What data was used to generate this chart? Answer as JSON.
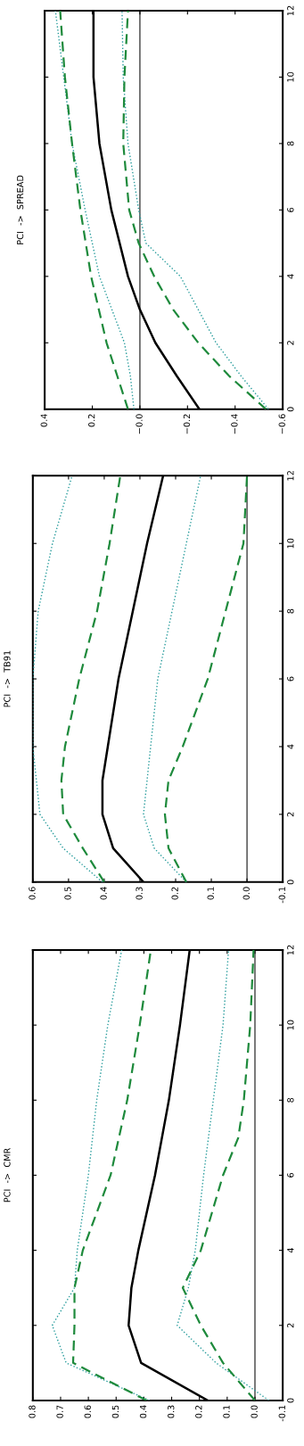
{
  "chart_data": [
    {
      "type": "line",
      "title": "PCI  ->  CMR",
      "ylim": [
        0,
        12
      ],
      "yticks": [
        0,
        2,
        4,
        6,
        8,
        10,
        12
      ],
      "xlim": [
        0.8,
        -0.1
      ],
      "xticks": [
        -0.1,
        {
          "value": 0,
          "label": "0.0"
        },
        0.1,
        0.2,
        0.3,
        0.4,
        0.5,
        0.6,
        0.7,
        0.8
      ],
      "grid": false,
      "legend": false,
      "ref_lines": [
        {
          "axis": "x",
          "value": 0,
          "color": "#404040",
          "line_style": "solid"
        }
      ],
      "series": [
        {
          "color": "#000000",
          "line_style": "solid",
          "values": [
            0,
            1,
            2,
            3,
            4,
            6,
            8,
            10,
            12
          ],
          "x": [
            0.17,
            0.41,
            0.455,
            0.445,
            0.42,
            0.36,
            0.31,
            0.27,
            0.235
          ]
        },
        {
          "color": "#2a9d9d",
          "line_style": "dotted",
          "values": [
            0,
            1,
            2,
            3,
            4,
            6,
            8,
            10,
            12
          ],
          "x": [
            0.38,
            0.68,
            0.73,
            0.65,
            0.64,
            0.6,
            0.57,
            0.53,
            0.48
          ]
        },
        {
          "color": "#1e8a3c",
          "line_style": "dashed",
          "values": [
            0,
            1,
            2,
            3,
            4,
            6,
            8,
            10,
            12
          ],
          "x": [
            0.39,
            0.655,
            0.65,
            0.65,
            0.62,
            0.52,
            0.46,
            0.415,
            0.375
          ]
        },
        {
          "color": "#2a9d9d",
          "line_style": "dotted",
          "values": [
            0,
            1,
            2,
            3,
            4,
            6,
            8,
            10,
            12
          ],
          "x": [
            -0.05,
            0.14,
            0.28,
            0.24,
            0.215,
            0.185,
            0.15,
            0.115,
            0.095
          ]
        },
        {
          "color": "#1e8a3c",
          "line_style": "dashed",
          "values": [
            0,
            1,
            2,
            3,
            4,
            6,
            7,
            8,
            10,
            12
          ],
          "x": [
            0.0,
            0.115,
            0.195,
            0.26,
            0.195,
            0.115,
            0.06,
            0.04,
            0.017,
            0.005
          ]
        }
      ]
    },
    {
      "type": "line",
      "title": "PCI  ->  TB91",
      "ylim": [
        0,
        12
      ],
      "yticks": [
        0,
        2,
        4,
        6,
        8,
        10,
        12
      ],
      "xlim": [
        0.6,
        -0.1
      ],
      "xticks": [
        -0.1,
        {
          "value": 0,
          "label": "0.0"
        },
        0.1,
        0.2,
        0.3,
        0.4,
        0.5,
        0.6
      ],
      "grid": false,
      "legend": false,
      "ref_lines": [
        {
          "axis": "x",
          "value": 0,
          "color": "#404040",
          "line_style": "solid"
        }
      ],
      "series": [
        {
          "color": "#000000",
          "line_style": "solid",
          "values": [
            0,
            1,
            2,
            3,
            4,
            6,
            8,
            10,
            12
          ],
          "x": [
            0.29,
            0.375,
            0.405,
            0.405,
            0.39,
            0.36,
            0.32,
            0.28,
            0.235
          ]
        },
        {
          "color": "#2a9d9d",
          "line_style": "dotted",
          "values": [
            0,
            1,
            2,
            4,
            6,
            8,
            10,
            12
          ],
          "x": [
            0.405,
            0.515,
            0.58,
            0.6,
            0.6,
            0.585,
            0.545,
            0.49
          ]
        },
        {
          "color": "#1e8a3c",
          "line_style": "dashed",
          "values": [
            0,
            1,
            2,
            3,
            4,
            6,
            8,
            10,
            12
          ],
          "x": [
            0.4,
            0.46,
            0.515,
            0.52,
            0.51,
            0.47,
            0.42,
            0.385,
            0.355
          ]
        },
        {
          "color": "#2a9d9d",
          "line_style": "dotted",
          "values": [
            0,
            1,
            2,
            4,
            6,
            8,
            10,
            12
          ],
          "x": [
            0.17,
            0.26,
            0.29,
            0.27,
            0.25,
            0.21,
            0.17,
            0.13
          ]
        },
        {
          "color": "#1e8a3c",
          "line_style": "dashed",
          "values": [
            0,
            1,
            2,
            3,
            4,
            6,
            8,
            10,
            12
          ],
          "x": [
            0.17,
            0.22,
            0.23,
            0.22,
            0.18,
            0.11,
            0.06,
            0.01,
            0.0
          ]
        }
      ]
    },
    {
      "type": "line",
      "title": "PCI  ->  SPREAD",
      "ylim": [
        0,
        12
      ],
      "yticks": [
        0,
        2,
        4,
        6,
        8,
        10,
        12
      ],
      "xlim": [
        0.4,
        -0.6
      ],
      "xticks": [
        {
          "value": -0.6,
          "label": "−0.6"
        },
        {
          "value": -0.4,
          "label": "−0.4"
        },
        {
          "value": -0.2,
          "label": "−0.2"
        },
        {
          "value": 0,
          "label": "−0.0"
        },
        0.2,
        0.4
      ],
      "grid": false,
      "legend": false,
      "ref_lines": [
        {
          "axis": "x",
          "value": 0,
          "color": "#404040",
          "line_style": "solid"
        }
      ],
      "series": [
        {
          "color": "#000000",
          "line_style": "solid",
          "values": [
            0,
            1,
            2,
            3,
            4,
            6,
            8,
            10,
            12
          ],
          "x": [
            -0.25,
            -0.155,
            -0.065,
            0.0,
            0.05,
            0.12,
            0.17,
            0.195,
            0.195
          ]
        },
        {
          "color": "#2a9d9d",
          "line_style": "dotted",
          "values": [
            0,
            1,
            2,
            4,
            6,
            8,
            10,
            12
          ],
          "x": [
            0.025,
            0.04,
            0.065,
            0.17,
            0.23,
            0.285,
            0.32,
            0.355
          ]
        },
        {
          "color": "#1e8a3c",
          "line_style": "dashed",
          "values": [
            0,
            1,
            2,
            4,
            6,
            8,
            10,
            12
          ],
          "x": [
            0.05,
            0.095,
            0.14,
            0.205,
            0.25,
            0.285,
            0.315,
            0.335
          ]
        },
        {
          "color": "#2a9d9d",
          "line_style": "dotted",
          "values": [
            0,
            1,
            2,
            4,
            5,
            6,
            8,
            10,
            12
          ],
          "x": [
            -0.54,
            -0.425,
            -0.32,
            -0.17,
            -0.025,
            0.005,
            0.05,
            0.07,
            0.075
          ]
        },
        {
          "color": "#1e8a3c",
          "line_style": "dashed",
          "values": [
            0,
            1,
            2,
            3,
            4,
            5,
            6,
            8,
            10,
            12
          ],
          "x": [
            -0.53,
            -0.375,
            -0.245,
            -0.14,
            -0.06,
            0.005,
            0.045,
            0.07,
            0.065,
            0.05
          ]
        }
      ]
    }
  ]
}
